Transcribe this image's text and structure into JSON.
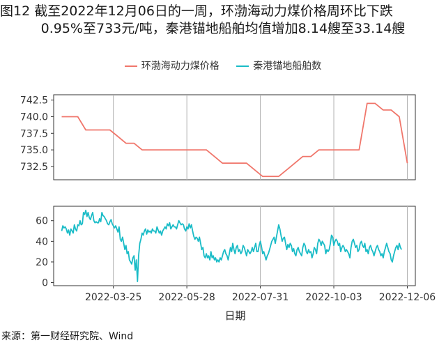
{
  "figure": {
    "title_line1": "图12  截至2022年12月06日的一周，环渤海动力煤价格周环比下跌",
    "title_line2": "0.95%至733元/吨，秦港锚地船舶均值增加8.14艘至33.14艘",
    "source": "来源：第一财经研究院、Wind"
  },
  "chart_data": [
    {
      "type": "line",
      "series": [
        {
          "name": "环渤海动力煤价格",
          "color": "#F0766B",
          "x": [
            "2022-02-08",
            "2022-02-22",
            "2022-03-01",
            "2022-03-08",
            "2022-03-15",
            "2022-03-22",
            "2022-03-29",
            "2022-04-05",
            "2022-04-12",
            "2022-04-19",
            "2022-04-26",
            "2022-05-03",
            "2022-05-10",
            "2022-05-17",
            "2022-05-24",
            "2022-05-31",
            "2022-06-07",
            "2022-06-14",
            "2022-06-21",
            "2022-06-28",
            "2022-07-05",
            "2022-07-12",
            "2022-07-19",
            "2022-07-26",
            "2022-08-02",
            "2022-08-09",
            "2022-08-16",
            "2022-08-23",
            "2022-08-30",
            "2022-09-06",
            "2022-09-13",
            "2022-09-20",
            "2022-09-27",
            "2022-10-04",
            "2022-10-11",
            "2022-10-18",
            "2022-10-25",
            "2022-11-01",
            "2022-11-08",
            "2022-11-15",
            "2022-11-22",
            "2022-11-29",
            "2022-12-06"
          ],
          "values": [
            740,
            740,
            738,
            738,
            738,
            738,
            737,
            736,
            736,
            735,
            735,
            735,
            735,
            735,
            735,
            735,
            735,
            735,
            734,
            733,
            733,
            733,
            733,
            732,
            731,
            731,
            731,
            732,
            733,
            734,
            734,
            735,
            735,
            735,
            735,
            735,
            735,
            742,
            742,
            741,
            741,
            740,
            733
          ]
        }
      ],
      "ylim": [
        730.5,
        743.3
      ],
      "yticks": [
        "742.5",
        "740.0",
        "737.5",
        "735.0",
        "732.5"
      ],
      "ytick_values": [
        742.5,
        740.0,
        737.5,
        735.0,
        732.5
      ]
    },
    {
      "type": "line",
      "series": [
        {
          "name": "秦港锚地船舶数",
          "color": "#1ABCC7",
          "x_start": "2022-02-08",
          "x_step_days": 1,
          "values": [
            50,
            55,
            53,
            54,
            52,
            48,
            51,
            46,
            52,
            50,
            48,
            56,
            52,
            50,
            56,
            55,
            60,
            56,
            57,
            68,
            66,
            70,
            64,
            68,
            63,
            61,
            65,
            68,
            60,
            58,
            59,
            58,
            58,
            62,
            59,
            68,
            65,
            64,
            62,
            60,
            57,
            56,
            59,
            61,
            57,
            55,
            53,
            55,
            52,
            49,
            54,
            42,
            40,
            44,
            38,
            32,
            36,
            28,
            30,
            22,
            20,
            18,
            24,
            26,
            12,
            22,
            1,
            26,
            38,
            42,
            48,
            46,
            50,
            52,
            47,
            51,
            49,
            50,
            48,
            52,
            50,
            50,
            48,
            54,
            51,
            48,
            50,
            46,
            50,
            52,
            54,
            52,
            57,
            55,
            58,
            52,
            54,
            56,
            54,
            54,
            52,
            56,
            60,
            58,
            56,
            57,
            56,
            52,
            50,
            54,
            52,
            57,
            53,
            56,
            50,
            45,
            42,
            44,
            43,
            40,
            44,
            38,
            32,
            34,
            26,
            24,
            28,
            24,
            26,
            22,
            30,
            24,
            26,
            22,
            24,
            20,
            22,
            20,
            24,
            22,
            26,
            30,
            32,
            28,
            26,
            22,
            28,
            34,
            30,
            38,
            32,
            28,
            34,
            36,
            30,
            32,
            28,
            30,
            36,
            34,
            30,
            26,
            32,
            30,
            28,
            30,
            34,
            30,
            34,
            38,
            30,
            30,
            36,
            40,
            35,
            28,
            30,
            26,
            22,
            26,
            28,
            32,
            36,
            40,
            42,
            44,
            38,
            44,
            50,
            56,
            52,
            46,
            40,
            43,
            44,
            38,
            32,
            37,
            34,
            38,
            36,
            30,
            33,
            28,
            26,
            32,
            34,
            30,
            28,
            26,
            34,
            38,
            36,
            30,
            28,
            32,
            29,
            30,
            24,
            28,
            34,
            32,
            28,
            38,
            42,
            40,
            36,
            40,
            38,
            36,
            28,
            32,
            30,
            32,
            38,
            46,
            44,
            36,
            40,
            42,
            40,
            36,
            38,
            30,
            34,
            36,
            34,
            30,
            32,
            30,
            28,
            24,
            34,
            40,
            42,
            38,
            34,
            36,
            30,
            32,
            38,
            40,
            36,
            34,
            38,
            30,
            32,
            28,
            34,
            36,
            32,
            30,
            26,
            30,
            34,
            36,
            32,
            30,
            26,
            28,
            24,
            30,
            34,
            38,
            34,
            30,
            28,
            22,
            20,
            26,
            30,
            34,
            36,
            32,
            38,
            34,
            32
          ],
          "n_points": 302
        }
      ],
      "ylim": [
        -3,
        74
      ],
      "yticks": [
        "60",
        "40",
        "20",
        "0"
      ],
      "ytick_values": [
        60,
        40,
        20,
        0
      ]
    }
  ],
  "shared_x": {
    "xlim_start": "2022-02-01",
    "xlim_end": "2022-12-13",
    "ticks": [
      "2022-03-25",
      "2022-05-28",
      "2022-07-31",
      "2022-10-03",
      "2022-12-06"
    ],
    "xlabel": "日期"
  }
}
